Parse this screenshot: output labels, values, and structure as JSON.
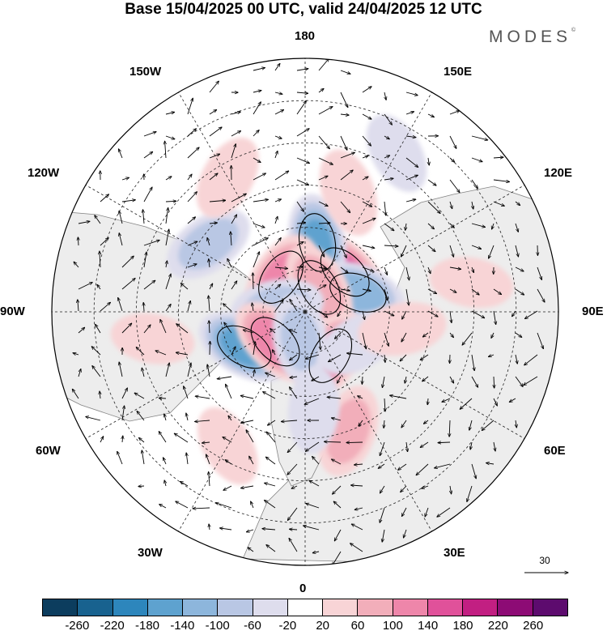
{
  "title": "Base 15/04/2025 00 UTC, valid 24/04/2025 12 UTC",
  "brand": "MODES",
  "brand_mark": "©",
  "longitude_labels": {
    "n180": "180",
    "w150": "150W",
    "e150": "150E",
    "w120": "120W",
    "e120": "120E",
    "w90": "90W",
    "e90": "90E",
    "w60": "60W",
    "e60": "60E",
    "w30": "30W",
    "e30": "30E",
    "s0": "0"
  },
  "reference_vector": {
    "value": "30"
  },
  "colorbar": {
    "colors": [
      "#0c3d5e",
      "#18628f",
      "#2d86bc",
      "#5ea2cf",
      "#8db6dc",
      "#b9c7e4",
      "#dedded",
      "#ffffff",
      "#f8d4d6",
      "#f2aeba",
      "#ee86aa",
      "#e0519a",
      "#c21f82",
      "#8d0b75",
      "#5d0b6e"
    ],
    "ticks": [
      "-260",
      "-220",
      "-180",
      "-140",
      "-100",
      "-60",
      "-20",
      "20",
      "60",
      "100",
      "140",
      "180",
      "220",
      "260"
    ]
  },
  "anomalies": [
    {
      "lon": 135,
      "colat": 20,
      "value": 150
    },
    {
      "lon": 170,
      "colat": 25,
      "value": -150
    },
    {
      "lon": -145,
      "colat": 15,
      "value": 120
    },
    {
      "lon": 110,
      "colat": 20,
      "value": -130
    },
    {
      "lon": 150,
      "colat": 10,
      "value": 100
    },
    {
      "lon": -100,
      "colat": 10,
      "value": -90
    },
    {
      "lon": -60,
      "colat": 25,
      "value": -170
    },
    {
      "lon": -45,
      "colat": 15,
      "value": 140
    },
    {
      "lon": 30,
      "colat": 18,
      "value": 130
    },
    {
      "lon": 20,
      "colat": 45,
      "value": 90
    },
    {
      "lon": -10,
      "colat": 10,
      "value": -80
    },
    {
      "lon": 60,
      "colat": 22,
      "value": -60
    },
    {
      "lon": 80,
      "colat": 35,
      "value": 60
    },
    {
      "lon": 100,
      "colat": 60,
      "value": 40
    },
    {
      "lon": -125,
      "colat": 42,
      "value": -90
    },
    {
      "lon": -150,
      "colat": 55,
      "value": 50
    },
    {
      "lon": 150,
      "colat": 65,
      "value": -40
    },
    {
      "lon": -80,
      "colat": 55,
      "value": 40
    },
    {
      "lon": 160,
      "colat": 45,
      "value": 60
    },
    {
      "lon": -30,
      "colat": 55,
      "value": 40
    },
    {
      "lon": 5,
      "colat": 35,
      "value": -50
    }
  ]
}
